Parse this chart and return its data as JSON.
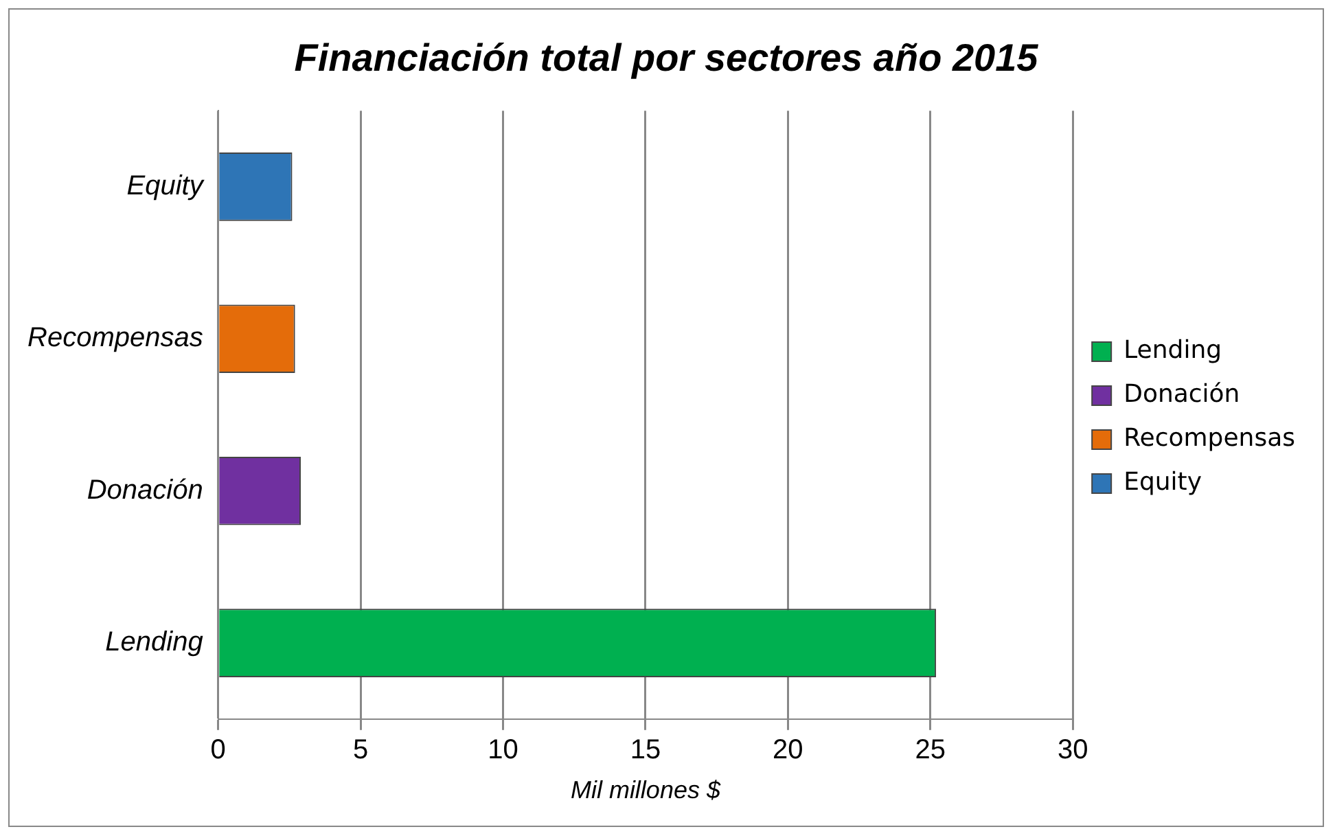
{
  "chart_data": {
    "type": "bar",
    "orientation": "horizontal",
    "title": "Financiación total por sectores año 2015",
    "xlabel": "Mil millones $",
    "categories": [
      "Equity",
      "Recompensas",
      "Donación",
      "Lending"
    ],
    "series": [
      {
        "name": "Lending",
        "color": "#00b050",
        "values": [
          null,
          null,
          null,
          25.2
        ]
      },
      {
        "name": "Donación",
        "color": "#7030a0",
        "values": [
          null,
          null,
          2.9,
          null
        ]
      },
      {
        "name": "Recompensas",
        "color": "#e46c0a",
        "values": [
          null,
          2.7,
          null,
          null
        ]
      },
      {
        "name": "Equity",
        "color": "#2e75b6",
        "values": [
          2.6,
          null,
          null,
          null
        ]
      }
    ],
    "xlim": [
      0,
      30
    ],
    "xticks": [
      0,
      5,
      10,
      15,
      20,
      25,
      30
    ],
    "grid": "x",
    "legend": "right"
  }
}
